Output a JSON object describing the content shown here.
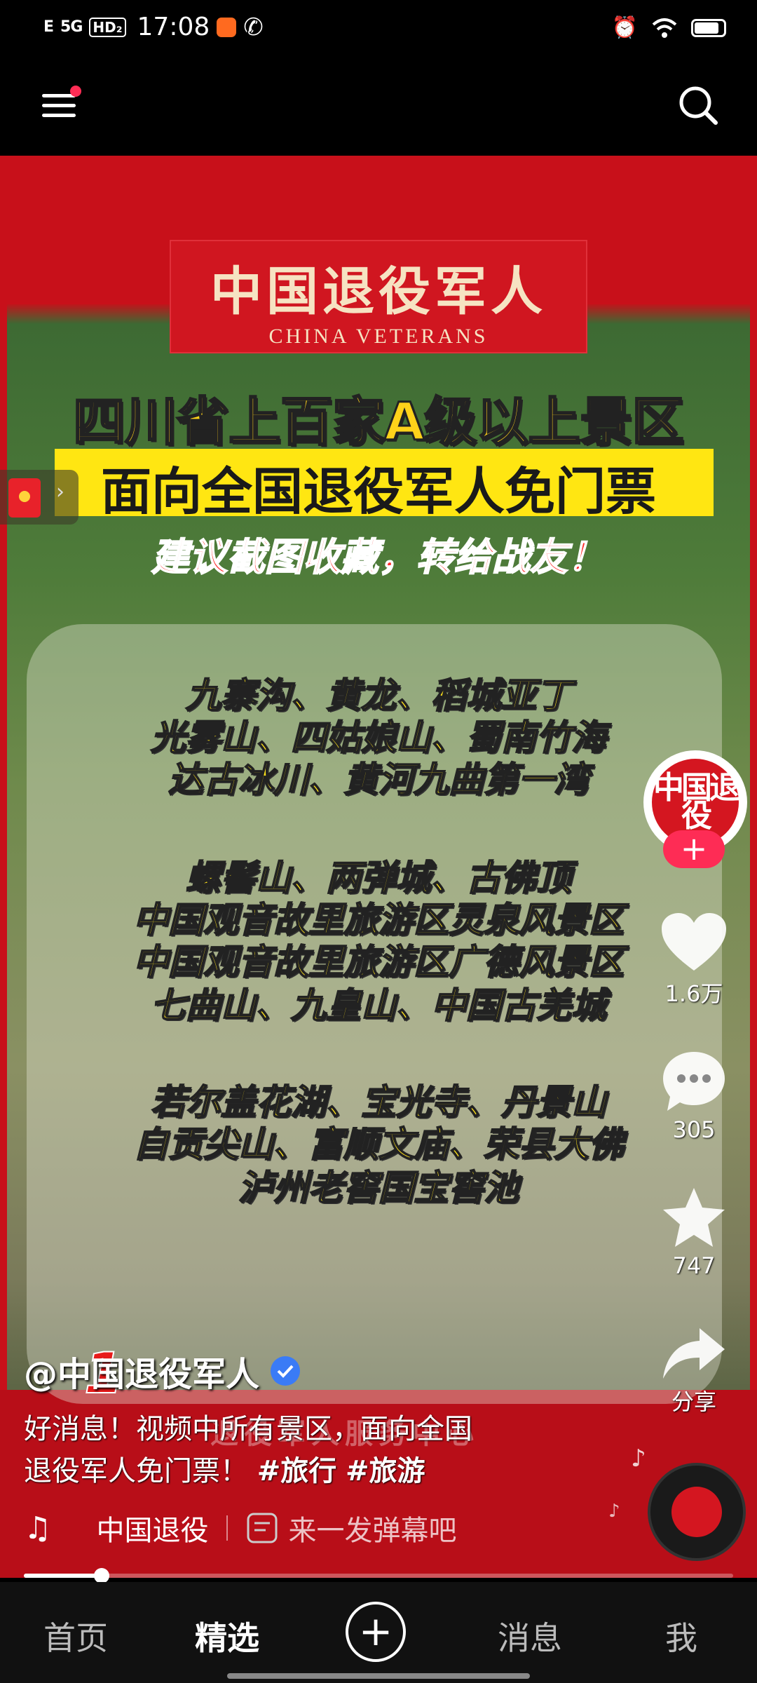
{
  "status_bar": {
    "signal1": "E",
    "signal2": "5G",
    "hd": "HD₂",
    "time": "17:08"
  },
  "video": {
    "logo_cn": "中国退役军人",
    "logo_en": "CHINA VETERANS",
    "headline1": "四川省上百家A级以上景区",
    "headline2": "面向全国退役军人免门票",
    "headline3": "建议截图收藏，转给战友！",
    "list_lines": [
      "九寨沟、黄龙、稻城亚丁",
      "光雾山、四姑娘山、蜀南竹海",
      "达古冰川、黄河九曲第一湾",
      "螺髻山、两弹城、古佛顶",
      "中国观音故里旅游区灵泉风景区",
      "中国观音故里旅游区广德风景区",
      "七曲山、九皇山、中国古羌城",
      "若尔盖花湖、宝光寺、丹景山",
      "自贡尖山、富顺文庙、荣县大佛",
      "泸州老窖国宝窖池"
    ],
    "page_number": "1",
    "bottom_overlay": "退役军人服务中心"
  },
  "actions": {
    "avatar_text": "中国退役",
    "follow": "+",
    "likes": "1.6万",
    "comments": "305",
    "favorites": "747",
    "share": "分享"
  },
  "caption": {
    "author": "@中国退役军人",
    "text_line1": "好消息！视频中所有景区，面向全国",
    "text_line2": "退役军人免门票！",
    "tag1": "#旅行",
    "tag2": "#旅游",
    "music": "中国退役",
    "danmu_placeholder": "来一发弹幕吧"
  },
  "progress": {
    "fraction": 0.11
  },
  "bottom_nav": {
    "tabs": [
      "首页",
      "精选",
      "消息",
      "我"
    ],
    "add": "+"
  },
  "colors": {
    "brand_red": "#c8101a",
    "follow_pink": "#fe2c55",
    "headline_yellow": "#ffd21a"
  }
}
